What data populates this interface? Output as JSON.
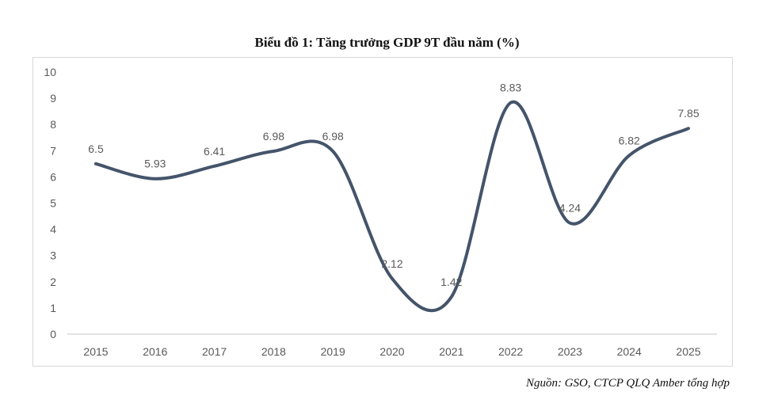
{
  "chart_data": {
    "type": "line",
    "title": "Biểu đồ 1: Tăng trưởng GDP 9T đầu năm (%)",
    "xlabel": "",
    "ylabel": "",
    "categories": [
      "2015",
      "2016",
      "2017",
      "2018",
      "2019",
      "2020",
      "2021",
      "2022",
      "2023",
      "2024",
      "2025"
    ],
    "series": [
      {
        "name": "Tăng trưởng GDP 9T",
        "values": [
          6.5,
          5.93,
          6.41,
          6.98,
          6.98,
          2.12,
          1.42,
          8.83,
          4.24,
          6.82,
          7.85
        ],
        "labels": [
          "6.5",
          "5.93",
          "6.41",
          "6.98",
          "6.98",
          "2.12",
          "1.42",
          "8.83",
          "4.24",
          "6.82",
          "7.85"
        ],
        "color": "#44546a",
        "smooth": true
      }
    ],
    "ylim": [
      0,
      10
    ],
    "yticks": [
      "0",
      "1",
      "2",
      "3",
      "4",
      "5",
      "6",
      "7",
      "8",
      "9",
      "10"
    ],
    "grid": false,
    "legend": "none"
  },
  "source": "Nguồn: GSO, CTCP QLQ Amber tổng hợp",
  "colors": {
    "line": "#44546a",
    "axis": "#d9d9d9",
    "tick_text": "#595959",
    "label_text": "#595959"
  }
}
